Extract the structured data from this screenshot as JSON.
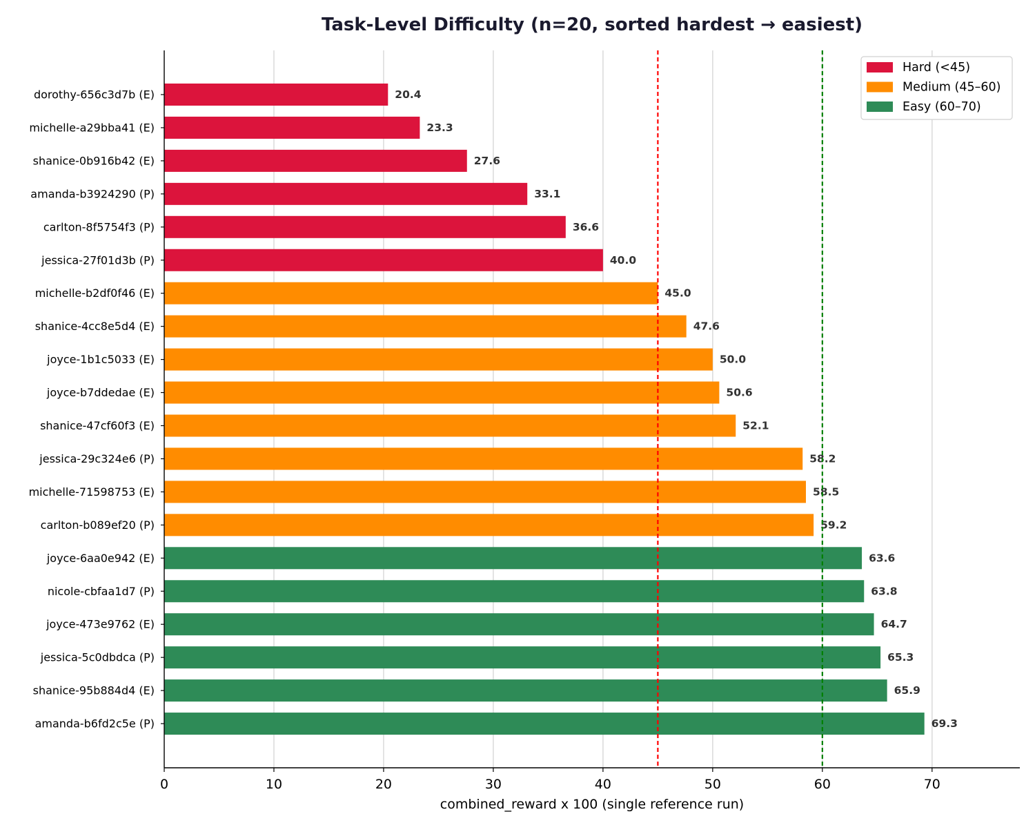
{
  "chart_data": {
    "type": "bar",
    "orientation": "horizontal",
    "title": "Task-Level Difficulty  (n=20, sorted hardest → easiest)",
    "xlabel": "combined_reward x 100 (single reference run)",
    "ylabel": "",
    "xlim": [
      0,
      78
    ],
    "xticks": [
      0,
      10,
      20,
      30,
      40,
      50,
      60,
      70
    ],
    "grid": "vertical",
    "legend_position": "top-right",
    "categories": [
      "dorothy-656c3d7b (E)",
      "michelle-a29bba41 (E)",
      "shanice-0b916b42 (E)",
      "amanda-b3924290 (P)",
      "carlton-8f5754f3 (P)",
      "jessica-27f01d3b (P)",
      "michelle-b2df0f46 (E)",
      "shanice-4cc8e5d4 (E)",
      "joyce-1b1c5033 (E)",
      "joyce-b7ddedae (E)",
      "shanice-47cf60f3 (E)",
      "jessica-29c324e6 (P)",
      "michelle-71598753 (E)",
      "carlton-b089ef20 (P)",
      "joyce-6aa0e942 (E)",
      "nicole-cbfaa1d7 (P)",
      "joyce-473e9762 (E)",
      "jessica-5c0dbdca (P)",
      "shanice-95b884d4 (E)",
      "amanda-b6fd2c5e (P)"
    ],
    "values": [
      20.4,
      23.3,
      27.6,
      33.1,
      36.6,
      40.0,
      45.0,
      47.6,
      50.0,
      50.6,
      52.1,
      58.2,
      58.5,
      59.2,
      63.6,
      63.8,
      64.7,
      65.3,
      65.9,
      69.3
    ],
    "value_labels": [
      "20.4",
      "23.3",
      "27.6",
      "33.1",
      "36.6",
      "40.0",
      "45.0",
      "47.6",
      "50.0",
      "50.6",
      "52.1",
      "58.2",
      "58.5",
      "59.2",
      "63.6",
      "63.8",
      "64.7",
      "65.3",
      "65.9",
      "69.3"
    ],
    "bar_groups": [
      "hard",
      "hard",
      "hard",
      "hard",
      "hard",
      "hard",
      "medium",
      "medium",
      "medium",
      "medium",
      "medium",
      "medium",
      "medium",
      "medium",
      "easy",
      "easy",
      "easy",
      "easy",
      "easy",
      "easy"
    ],
    "groups": {
      "hard": {
        "label": "Hard (<45)",
        "color": "#dc143c"
      },
      "medium": {
        "label": "Medium (45–60)",
        "color": "#ff8c00"
      },
      "easy": {
        "label": "Easy (60–70)",
        "color": "#2e8b57"
      }
    },
    "legend_order": [
      "hard",
      "medium",
      "easy"
    ],
    "reference_lines": [
      {
        "x": 45,
        "color": "#ff0000",
        "style": "dashed"
      },
      {
        "x": 60,
        "color": "#008000",
        "style": "dashed"
      }
    ]
  }
}
